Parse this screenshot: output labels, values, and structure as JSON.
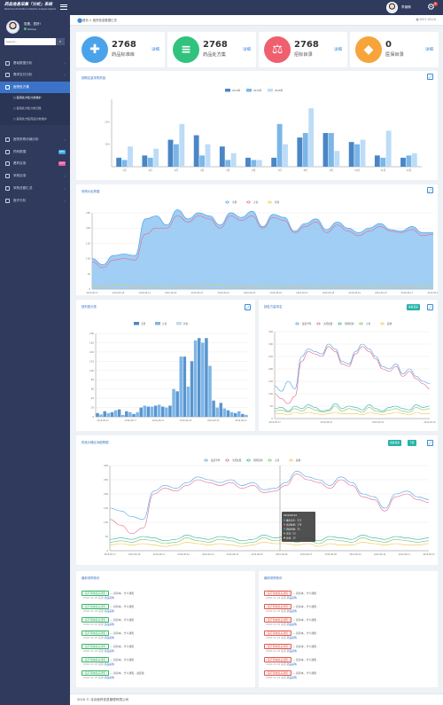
{
  "app": {
    "logo_line1": "药品信息采集「分析」系统",
    "logo_line2": "Medicine Information Collection Analysis System",
    "user_name": "李朋畅",
    "notif_count": "6"
  },
  "sidebar": {
    "user_name": "张昊，您好!",
    "status": "Online",
    "search_placeholder": "Search...",
    "items": [
      {
        "label": "基础数据分析",
        "icon": "chart-icon"
      },
      {
        "label": "需求支付分析",
        "icon": "wallet-icon"
      },
      {
        "label": "医院处方集",
        "icon": "prescription-icon",
        "active": true
      },
      {
        "label": "医院采购价格分析",
        "icon": "price-icon"
      },
      {
        "label": "药码数据",
        "icon": "barcode-icon",
        "badge": "NEW",
        "badge_color": "#3ba2e0"
      },
      {
        "label": "基药目录",
        "icon": "catalog-icon",
        "badge": "HOT",
        "badge_color": "#e85a9b"
      },
      {
        "label": "采购目录",
        "icon": "purchase-icon"
      },
      {
        "label": "采购总额汇总",
        "icon": "sum-icon"
      },
      {
        "label": "医疗分析",
        "icon": "medical-icon"
      }
    ],
    "sub_items": [
      "医院处方集分类维护",
      "医院处方集分类归属",
      "医院处方集药品分类维护"
    ]
  },
  "breadcrumb": {
    "text": "首页 > 医药信息数据汇总",
    "date": "2017-03-10"
  },
  "stats": [
    {
      "value": "2768",
      "label": "药品标准库",
      "more": "详细",
      "color": "#4aa3ea",
      "icon": "✚"
    },
    {
      "value": "2768",
      "label": "药品处方集",
      "more": "详细",
      "color": "#31c37d",
      "icon": "≡"
    },
    {
      "value": "2768",
      "label": "招标目录",
      "more": "详细",
      "color": "#ef5f6d",
      "icon": "⚖"
    },
    {
      "value": "0",
      "label": "医保目录",
      "more": "详细",
      "color": "#f7a43a",
      "icon": "◆"
    }
  ],
  "panels": {
    "p1": {
      "title": "按期定量采购药品"
    },
    "p2": {
      "title": "采购价走势图"
    },
    "p3": {
      "title": "按剂型分类"
    },
    "p4": {
      "title": "按处方量排名",
      "button": "看看更多"
    },
    "p5": {
      "title": "药品价格区间趋势图",
      "buttons": [
        "看看更多",
        "下载"
      ]
    },
    "p6": {
      "title": "最新采购快讯"
    },
    "p7": {
      "title": "最新采购快讯"
    }
  },
  "chart_data": [
    {
      "type": "bar",
      "legend": [
        "2014年",
        "2015年",
        "2016年"
      ],
      "colors": [
        "#4a86c5",
        "#7bb6e8",
        "#bcdcf7"
      ],
      "categories": [
        "1月",
        "2月",
        "3月",
        "4月",
        "5月",
        "6月",
        "7月",
        "8月",
        "9月",
        "10月",
        "11月",
        "12月"
      ],
      "yticks": [
        "",
        "10%",
        "20%",
        ""
      ],
      "ylim": [
        0,
        30
      ],
      "series": [
        {
          "name": "2014年",
          "values": [
            4,
            5,
            12,
            14,
            9,
            4,
            4,
            13,
            15,
            11,
            5,
            4
          ]
        },
        {
          "name": "2015年",
          "values": [
            3,
            4,
            10,
            5,
            3,
            3,
            19,
            15,
            15,
            10,
            4,
            5
          ]
        },
        {
          "name": "2016年",
          "values": [
            9,
            8,
            19,
            10,
            6,
            3,
            10,
            26,
            7,
            12,
            16,
            6
          ]
        }
      ]
    },
    {
      "type": "area",
      "legend": [
        "全部",
        "正常",
        "异常"
      ],
      "colors": [
        "#4aa3ea",
        "#e56b8a",
        "#f0c24a"
      ],
      "xticks": [
        "2016-08-17",
        "2016-08-18",
        "2016-08-21",
        "2016-08-22",
        "2016-08-23",
        "2016-08-24",
        "2016-08-25",
        "2016-08-26",
        "2016-08-27",
        "2016-08-28",
        "2016-08-29",
        "2016-08-10",
        "2016-08-11",
        "2016-08-13"
      ],
      "yticks": [
        "0",
        "50",
        "100",
        "150",
        "200",
        "250"
      ],
      "ylim": [
        0,
        250
      ],
      "series": [
        {
          "name": "全部",
          "values": [
            100,
            80,
            110,
            115,
            110,
            230,
            240,
            210,
            260,
            230,
            250,
            240,
            210,
            250,
            235,
            255,
            205,
            245,
            235,
            190,
            215,
            230,
            195,
            220,
            200,
            185,
            200,
            215,
            195,
            190,
            205,
            185,
            185
          ]
        },
        {
          "name": "正常",
          "values": [
            90,
            70,
            95,
            100,
            95,
            180,
            200,
            200,
            240,
            220,
            240,
            230,
            200,
            240,
            225,
            240,
            200,
            235,
            225,
            185,
            205,
            220,
            185,
            210,
            190,
            175,
            190,
            205,
            190,
            185,
            195,
            175,
            180
          ]
        },
        {
          "name": "异常",
          "values": [
            10,
            8,
            15,
            12,
            8,
            10,
            10,
            12,
            10,
            8,
            10,
            15,
            12,
            10,
            10,
            8,
            12,
            10,
            10,
            8,
            10,
            12,
            10,
            10,
            8,
            10,
            12,
            10,
            10,
            8,
            10,
            12,
            10
          ]
        }
      ]
    },
    {
      "type": "bar",
      "legend": [
        "全部",
        "正常",
        "异常"
      ],
      "colors": [
        "#4a86c5",
        "#7bb6e8",
        "#bcdcf7"
      ],
      "xticks": [
        "2016-08-13",
        "2016-08-17",
        "2016-08-21",
        "2016-08-23",
        "2016-08-25",
        "2016-08-27"
      ],
      "yticks": [
        "0",
        "20",
        "40",
        "60",
        "80",
        "100",
        "120",
        "140",
        "160",
        "180"
      ],
      "ylim": [
        0,
        180
      ],
      "values": [
        8,
        5,
        12,
        8,
        10,
        14,
        16,
        4,
        12,
        10,
        6,
        10,
        20,
        24,
        22,
        22,
        24,
        26,
        22,
        20,
        24,
        60,
        55,
        130,
        130,
        65,
        120,
        165,
        170,
        160,
        170,
        110,
        35,
        20,
        30,
        18,
        14,
        10,
        8,
        12,
        6,
        4
      ]
    },
    {
      "type": "line",
      "legend": [
        "最近半年",
        "当月处置",
        "风险控制",
        "正常",
        "其他"
      ],
      "colors": [
        "#4aa3ea",
        "#e56b8a",
        "#26b3a8",
        "#7cc06a",
        "#f0c24a"
      ],
      "xticks": [
        "2016-08-17",
        "2016-08-25",
        "2016-08-31",
        "2016-09-10"
      ],
      "yticks": [
        "0",
        "50",
        "100",
        "150",
        "200",
        "250",
        "300",
        "350"
      ],
      "ylim": [
        0,
        350
      ],
      "series": [
        {
          "name": "最近半年",
          "values": [
            130,
            110,
            150,
            120,
            250,
            280,
            270,
            260,
            300,
            280,
            230,
            220,
            270,
            300,
            280,
            250,
            210,
            200,
            220,
            180,
            200,
            170,
            150,
            140
          ]
        },
        {
          "name": "当月处置",
          "values": [
            100,
            80,
            60,
            90,
            230,
            270,
            260,
            250,
            290,
            270,
            220,
            210,
            260,
            290,
            270,
            240,
            200,
            190,
            210,
            170,
            190,
            160,
            140,
            120
          ]
        },
        {
          "name": "风险控制",
          "values": [
            40,
            45,
            30,
            50,
            40,
            55,
            45,
            30,
            35,
            60,
            40,
            50,
            45,
            35,
            55,
            40,
            30,
            45,
            50,
            40,
            35,
            55,
            45,
            50
          ]
        },
        {
          "name": "正常",
          "values": [
            30,
            35,
            25,
            40,
            30,
            45,
            35,
            25,
            30,
            50,
            30,
            40,
            35,
            25,
            45,
            30,
            25,
            35,
            40,
            30,
            25,
            45,
            35,
            40
          ]
        },
        {
          "name": "其他",
          "values": [
            20,
            20,
            15,
            25,
            20,
            25,
            20,
            15,
            20,
            25,
            20,
            20,
            20,
            15,
            25,
            20,
            15,
            20,
            25,
            20,
            15,
            25,
            20,
            20
          ]
        }
      ]
    },
    {
      "type": "line",
      "legend": [
        "最近半年",
        "当月处置",
        "风险控制",
        "正常",
        "其他"
      ],
      "colors": [
        "#4aa3ea",
        "#e56b8a",
        "#26b3a8",
        "#7cc06a",
        "#f0c24a"
      ],
      "xticks": [
        "2016-08-17",
        "2016-08-18",
        "2016-08-21",
        "2016-08-22",
        "2016-08-23",
        "2016-08-24",
        "2016-08-25",
        "2016-08-26",
        "2016-08-27",
        "2016-08-28",
        "2016-08-29",
        "2016-08-10",
        "2016-08-11",
        "2016-08-13"
      ],
      "yticks": [
        "0",
        "50",
        "100",
        "150",
        "200",
        "250",
        "300"
      ],
      "ylim": [
        0,
        300
      ],
      "series": [
        {
          "name": "最近半年",
          "values": [
            150,
            140,
            120,
            110,
            210,
            230,
            220,
            240,
            260,
            250,
            240,
            250,
            230,
            240,
            215,
            220,
            240,
            280,
            260,
            250,
            230,
            260,
            240,
            200,
            190,
            150,
            200,
            210,
            190,
            180
          ]
        },
        {
          "name": "当月处置",
          "values": [
            110,
            90,
            60,
            80,
            200,
            220,
            210,
            230,
            250,
            240,
            230,
            240,
            220,
            230,
            205,
            210,
            230,
            270,
            250,
            240,
            220,
            250,
            230,
            190,
            180,
            140,
            190,
            200,
            180,
            170
          ]
        },
        {
          "name": "风险控制",
          "values": [
            40,
            45,
            40,
            50,
            45,
            35,
            40,
            55,
            45,
            40,
            50,
            45,
            35,
            40,
            55,
            45,
            50,
            40,
            45,
            35,
            50,
            45,
            40,
            55,
            45,
            40,
            50,
            45,
            40,
            45
          ]
        },
        {
          "name": "正常",
          "values": [
            30,
            35,
            30,
            40,
            35,
            25,
            30,
            45,
            35,
            30,
            40,
            35,
            25,
            30,
            45,
            35,
            40,
            30,
            35,
            25,
            40,
            35,
            30,
            45,
            35,
            30,
            40,
            35,
            30,
            35
          ]
        },
        {
          "name": "其他",
          "values": [
            20,
            25,
            20,
            25,
            20,
            15,
            20,
            30,
            25,
            20,
            25,
            20,
            15,
            20,
            30,
            25,
            25,
            20,
            25,
            15,
            25,
            20,
            20,
            30,
            25,
            20,
            25,
            20,
            20,
            25
          ]
        }
      ],
      "tooltip": {
        "title": "2016-08-22",
        "rows": [
          "最近半年：212",
          "当月处置：178",
          "风险控制：31",
          "正常：53",
          "其他：22"
        ]
      }
    }
  ],
  "news_left": [
    {
      "tag": "医疗器械集采通知",
      "text": "药药本，什么通知",
      "date": "2016-11-03",
      "a": "来源",
      "b": "药品采购"
    },
    {
      "tag": "医疗器械集采通知",
      "text": "药药本，什么通知",
      "date": "2016-11-03",
      "a": "来源",
      "b": "药品采购"
    },
    {
      "tag": "医疗器械集采通知",
      "text": "药药本，什么通知",
      "date": "2016-11-03",
      "a": "来源",
      "b": "药品采购"
    },
    {
      "tag": "医疗器械集采通知",
      "text": "药药本，什么通知",
      "date": "2016-11-03",
      "a": "来源",
      "b": "药品采购"
    },
    {
      "tag": "医疗器械集采通知",
      "text": "药药本，什么通知",
      "date": "2016-11-03",
      "a": "来源",
      "b": "药品采购"
    },
    {
      "tag": "医疗器械集采通知",
      "text": "药药本，什么通知",
      "date": "2016-11-03",
      "a": "来源",
      "b": "药品采购"
    },
    {
      "tag": "医疗器械集采通知",
      "text": "药药本，什么通知，进度批",
      "date": "2016-11-03",
      "a": "来源",
      "b": "药品采购"
    }
  ],
  "news_right": [
    {
      "tag": "医疗器械集采通知",
      "text": "药药本，什么通知",
      "date": "2016-11-03",
      "a": "来源",
      "b": "药品采购"
    },
    {
      "tag": "医疗器械集采通知",
      "text": "药药本，什么通知",
      "date": "2016-11-03",
      "a": "来源",
      "b": "药品采购"
    },
    {
      "tag": "医疗器械集采通知",
      "text": "药药本，什么通知",
      "date": "2016-11-03",
      "a": "来源",
      "b": "药品采购"
    },
    {
      "tag": "医疗器械集采通知",
      "text": "药药本，什么通知",
      "date": "2016-11-03",
      "a": "来源",
      "b": "药品采购"
    },
    {
      "tag": "医疗器械集采通知",
      "text": "药药本，什么通知",
      "date": "2016-11-03",
      "a": "来源",
      "b": "药品采购"
    },
    {
      "tag": "医疗器械集采通知",
      "text": "药药本，什么通知",
      "date": "2016-11-03",
      "a": "来源",
      "b": "药品采购"
    },
    {
      "tag": "医疗器械集采通知",
      "text": "药药本，什么通知",
      "date": "2016-11-03",
      "a": "来源",
      "b": "药品采购"
    }
  ],
  "footer": "2016 © 北京医药信息管理有限公司"
}
